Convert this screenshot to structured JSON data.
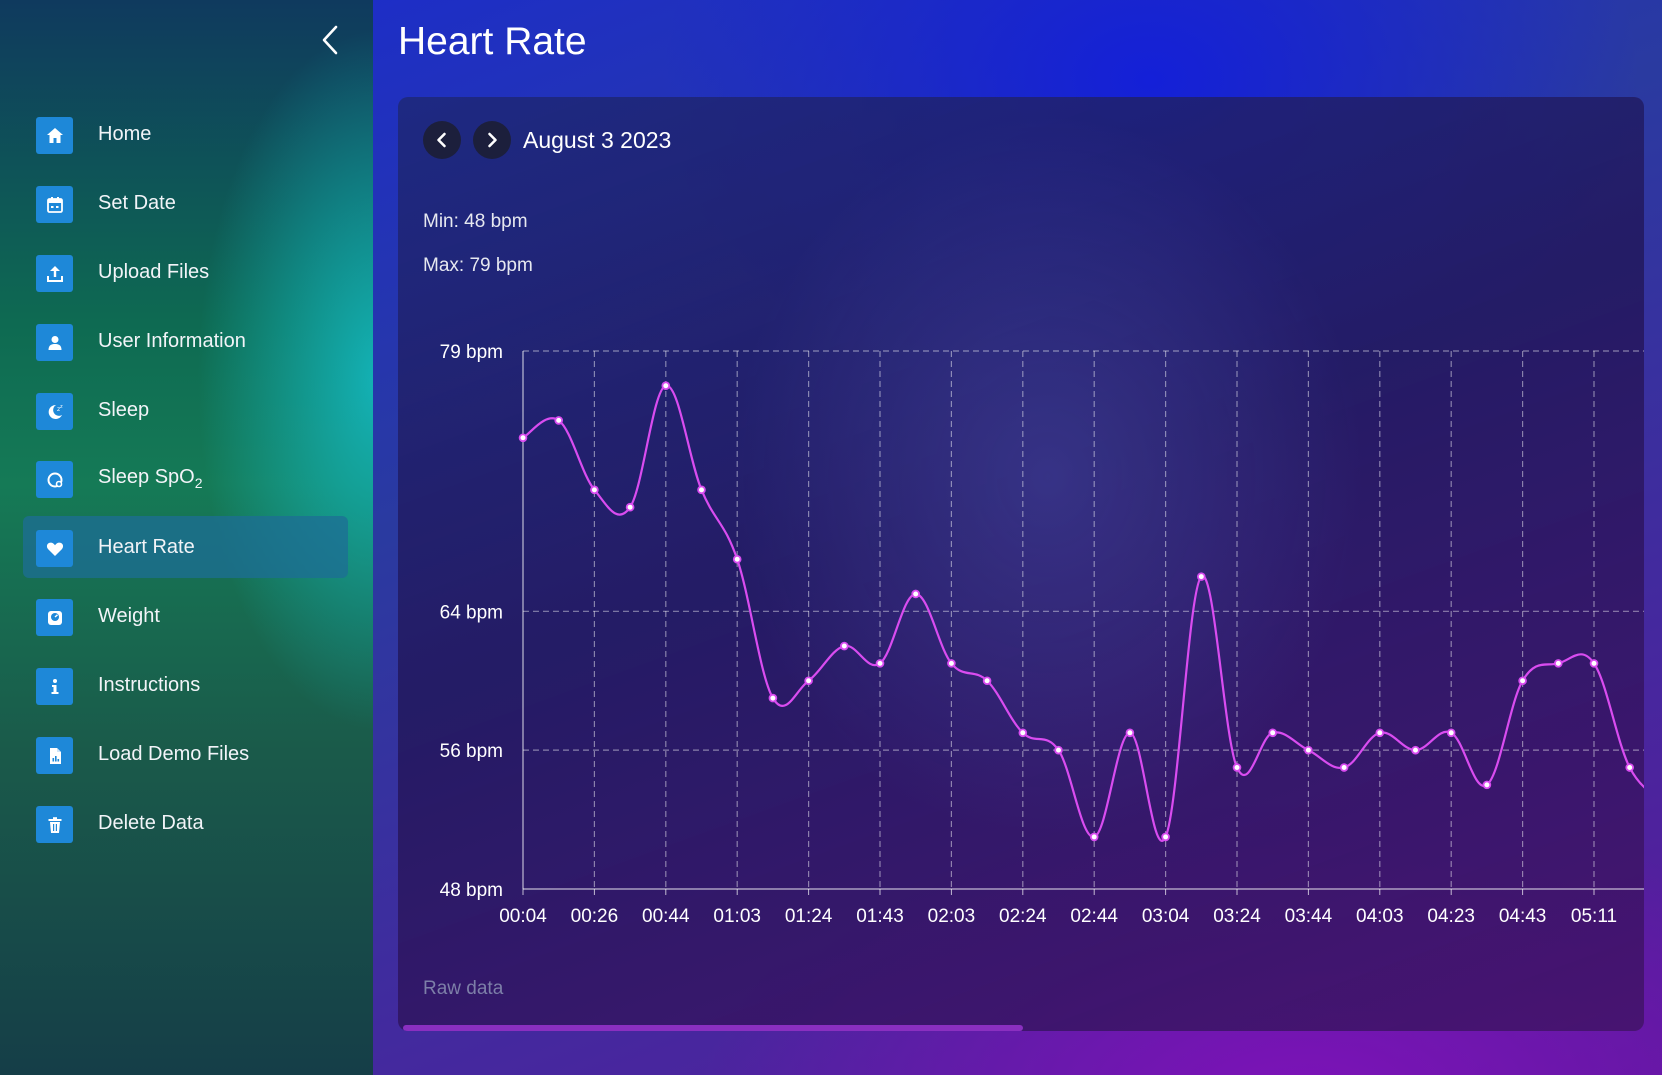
{
  "sidebar": {
    "items": [
      {
        "label": "Home",
        "icon": "home-icon"
      },
      {
        "label": "Set Date",
        "icon": "calendar-icon"
      },
      {
        "label": "Upload Files",
        "icon": "upload-icon"
      },
      {
        "label": "User Information",
        "icon": "user-icon"
      },
      {
        "label": "Sleep",
        "icon": "moon-icon"
      },
      {
        "label": "Sleep SpO",
        "subscript": "2",
        "icon": "spo2-icon"
      },
      {
        "label": "Heart Rate",
        "icon": "heart-icon",
        "active": true
      },
      {
        "label": "Weight",
        "icon": "scale-icon"
      },
      {
        "label": "Instructions",
        "icon": "info-icon"
      },
      {
        "label": "Load Demo Files",
        "icon": "file-icon"
      },
      {
        "label": "Delete Data",
        "icon": "trash-icon"
      }
    ]
  },
  "page": {
    "title": "Heart Rate"
  },
  "nav": {
    "date": "August 3 2023"
  },
  "stats": {
    "min": "Min: 48 bpm",
    "max": "Max: 79 bpm"
  },
  "footer": {
    "raw_data": "Raw data"
  },
  "colors": {
    "accent": "#1e88d8",
    "line": "#d94cf0"
  },
  "chart_data": {
    "type": "line",
    "x": [
      "00:04",
      "00:15",
      "00:26",
      "00:35",
      "00:44",
      "00:53",
      "01:03",
      "01:13",
      "01:24",
      "01:33",
      "01:43",
      "01:53",
      "02:03",
      "02:13",
      "02:24",
      "02:34",
      "02:44",
      "02:54",
      "03:04",
      "03:14",
      "03:24",
      "03:34",
      "03:44",
      "03:54",
      "04:03",
      "04:13",
      "04:23",
      "04:33",
      "04:43",
      "04:53",
      "05:11",
      "05:21",
      "05:31"
    ],
    "x_tick_labels": [
      "00:04",
      "00:26",
      "00:44",
      "01:03",
      "01:24",
      "01:43",
      "02:03",
      "02:24",
      "02:44",
      "03:04",
      "03:24",
      "03:44",
      "04:03",
      "04:23",
      "04:43",
      "05:11"
    ],
    "values": [
      74,
      75,
      71,
      70,
      77,
      71,
      67,
      59,
      60,
      62,
      61,
      65,
      61,
      60,
      57,
      56,
      51,
      57,
      51,
      66,
      55,
      57,
      56,
      55,
      57,
      56,
      57,
      54,
      60,
      61,
      61,
      55,
      53
    ],
    "y_ticks": [
      "79 bpm",
      "64 bpm",
      "56 bpm",
      "48 bpm"
    ],
    "y_tick_values": [
      79,
      64,
      56,
      48
    ],
    "ylim": [
      48,
      79
    ],
    "grid": true
  }
}
